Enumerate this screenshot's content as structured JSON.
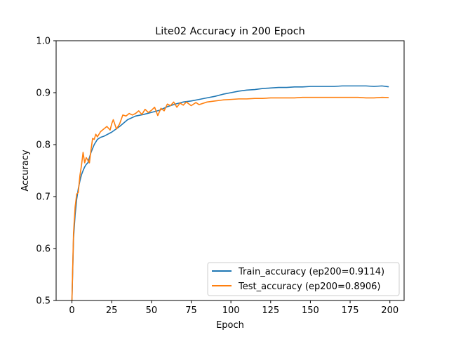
{
  "chart_data": {
    "type": "line",
    "title": "Lite02 Accuracy in 200 Epoch",
    "xlabel": "Epoch",
    "ylabel": "Accuracy",
    "xlim": [
      -9.95,
      208.95
    ],
    "ylim": [
      0.5,
      1.0
    ],
    "xticks": [
      0,
      25,
      50,
      75,
      100,
      125,
      150,
      175,
      200
    ],
    "yticks": [
      0.5,
      0.6,
      0.7,
      0.8,
      0.9,
      1.0
    ],
    "xtick_labels": [
      "0",
      "25",
      "50",
      "75",
      "100",
      "125",
      "150",
      "175",
      "200"
    ],
    "ytick_labels": [
      "0.5",
      "0.6",
      "0.7",
      "0.8",
      "0.9",
      "1.0"
    ],
    "grid": false,
    "legend_position": "lower-right",
    "series": [
      {
        "name": "Train_accuracy (ep200=0.9114)",
        "color": "#1f77b4",
        "points": [
          [
            0,
            0.5
          ],
          [
            1,
            0.62
          ],
          [
            2,
            0.665
          ],
          [
            3,
            0.695
          ],
          [
            4,
            0.715
          ],
          [
            5,
            0.73
          ],
          [
            6,
            0.742
          ],
          [
            7,
            0.75
          ],
          [
            8,
            0.757
          ],
          [
            9,
            0.762
          ],
          [
            10,
            0.765
          ],
          [
            12,
            0.785
          ],
          [
            14,
            0.8
          ],
          [
            16,
            0.81
          ],
          [
            18,
            0.814
          ],
          [
            20,
            0.816
          ],
          [
            25,
            0.824
          ],
          [
            30,
            0.835
          ],
          [
            35,
            0.848
          ],
          [
            40,
            0.855
          ],
          [
            45,
            0.858
          ],
          [
            50,
            0.862
          ],
          [
            55,
            0.866
          ],
          [
            60,
            0.873
          ],
          [
            65,
            0.878
          ],
          [
            70,
            0.882
          ],
          [
            75,
            0.884
          ],
          [
            80,
            0.887
          ],
          [
            85,
            0.89
          ],
          [
            90,
            0.893
          ],
          [
            95,
            0.897
          ],
          [
            100,
            0.9
          ],
          [
            105,
            0.903
          ],
          [
            110,
            0.905
          ],
          [
            115,
            0.906
          ],
          [
            120,
            0.908
          ],
          [
            125,
            0.909
          ],
          [
            130,
            0.91
          ],
          [
            135,
            0.91
          ],
          [
            140,
            0.911
          ],
          [
            145,
            0.911
          ],
          [
            150,
            0.912
          ],
          [
            155,
            0.912
          ],
          [
            160,
            0.912
          ],
          [
            165,
            0.912
          ],
          [
            170,
            0.913
          ],
          [
            175,
            0.913
          ],
          [
            180,
            0.913
          ],
          [
            185,
            0.913
          ],
          [
            190,
            0.912
          ],
          [
            195,
            0.913
          ],
          [
            199,
            0.9114
          ]
        ]
      },
      {
        "name": "Test_accuracy (ep200=0.8906)",
        "color": "#ff7f0e",
        "points": [
          [
            0,
            0.5
          ],
          [
            1,
            0.63
          ],
          [
            2,
            0.68
          ],
          [
            3,
            0.705
          ],
          [
            4,
            0.708
          ],
          [
            5,
            0.74
          ],
          [
            6,
            0.76
          ],
          [
            7,
            0.785
          ],
          [
            8,
            0.765
          ],
          [
            9,
            0.775
          ],
          [
            10,
            0.77
          ],
          [
            11,
            0.765
          ],
          [
            12,
            0.79
          ],
          [
            13,
            0.812
          ],
          [
            14,
            0.81
          ],
          [
            15,
            0.82
          ],
          [
            16,
            0.815
          ],
          [
            18,
            0.825
          ],
          [
            20,
            0.83
          ],
          [
            22,
            0.835
          ],
          [
            24,
            0.828
          ],
          [
            25,
            0.84
          ],
          [
            26,
            0.848
          ],
          [
            28,
            0.83
          ],
          [
            30,
            0.84
          ],
          [
            32,
            0.857
          ],
          [
            34,
            0.855
          ],
          [
            36,
            0.86
          ],
          [
            38,
            0.857
          ],
          [
            40,
            0.86
          ],
          [
            42,
            0.865
          ],
          [
            44,
            0.858
          ],
          [
            46,
            0.868
          ],
          [
            48,
            0.862
          ],
          [
            50,
            0.866
          ],
          [
            52,
            0.872
          ],
          [
            54,
            0.856
          ],
          [
            56,
            0.87
          ],
          [
            58,
            0.865
          ],
          [
            60,
            0.878
          ],
          [
            62,
            0.875
          ],
          [
            64,
            0.882
          ],
          [
            66,
            0.872
          ],
          [
            68,
            0.88
          ],
          [
            70,
            0.876
          ],
          [
            72,
            0.882
          ],
          [
            75,
            0.875
          ],
          [
            78,
            0.881
          ],
          [
            80,
            0.877
          ],
          [
            85,
            0.882
          ],
          [
            90,
            0.884
          ],
          [
            95,
            0.886
          ],
          [
            100,
            0.887
          ],
          [
            105,
            0.888
          ],
          [
            110,
            0.888
          ],
          [
            115,
            0.889
          ],
          [
            120,
            0.889
          ],
          [
            125,
            0.89
          ],
          [
            130,
            0.89
          ],
          [
            135,
            0.89
          ],
          [
            140,
            0.89
          ],
          [
            145,
            0.891
          ],
          [
            150,
            0.891
          ],
          [
            155,
            0.891
          ],
          [
            160,
            0.891
          ],
          [
            165,
            0.891
          ],
          [
            170,
            0.891
          ],
          [
            175,
            0.891
          ],
          [
            180,
            0.891
          ],
          [
            185,
            0.89
          ],
          [
            190,
            0.89
          ],
          [
            195,
            0.891
          ],
          [
            199,
            0.8906
          ]
        ]
      }
    ]
  }
}
